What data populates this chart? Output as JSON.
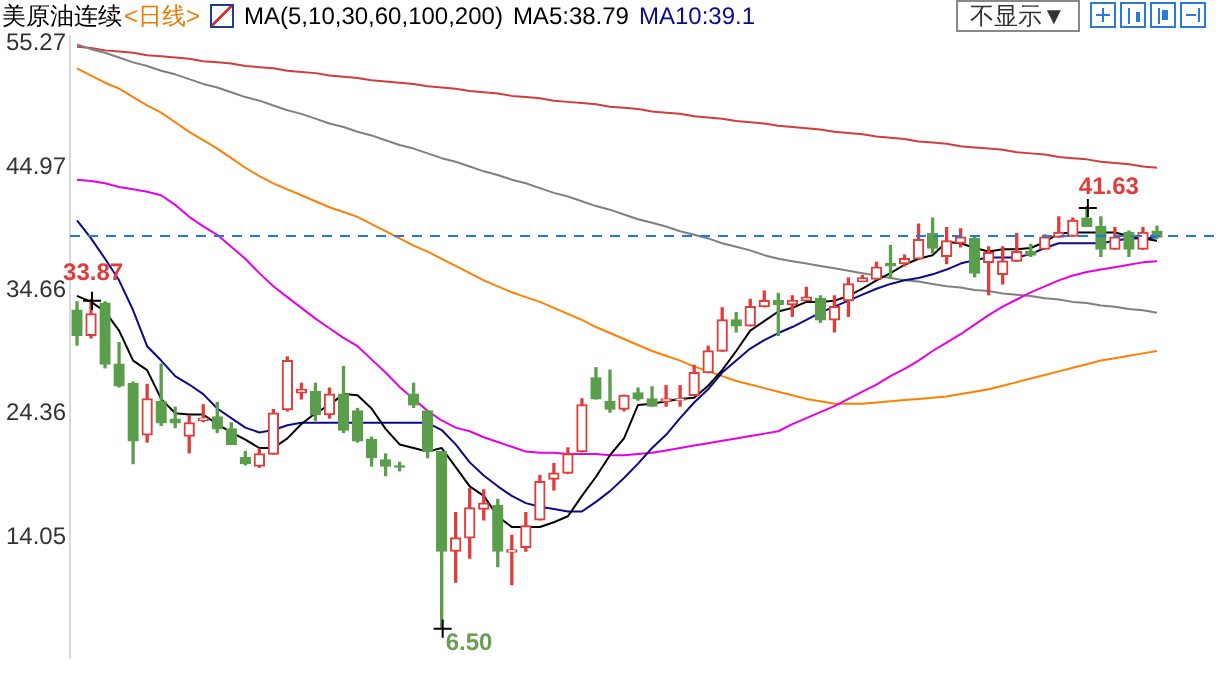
{
  "chart_data": {
    "type": "candlestick",
    "title": "美原油连续",
    "subtitle": "<日线>",
    "annotations": [
      "MA(5,10,30,60,100,200)",
      "MA5:38.79",
      "MA10:39.1",
      "不显示▼"
    ],
    "value_labels": [
      null,
      "33.87",
      null,
      null,
      null,
      null,
      null,
      null,
      null,
      null,
      null,
      null,
      null,
      null,
      null,
      null,
      null,
      null,
      null,
      null,
      null,
      null,
      null,
      null,
      null,
      null,
      "6.50",
      null,
      null,
      null,
      null,
      null,
      null,
      null,
      null,
      null,
      null,
      null,
      null,
      null,
      null,
      null,
      null,
      null,
      null,
      null,
      null,
      null,
      null,
      null,
      null,
      null,
      null,
      null,
      null,
      null,
      null,
      null,
      null,
      null,
      null,
      null,
      null,
      null,
      null,
      null,
      null,
      null,
      null,
      null,
      null,
      null,
      "41.63",
      null,
      null,
      null,
      null,
      null
    ],
    "categories": [
      null,
      null,
      null,
      null,
      null,
      null,
      null,
      null,
      null,
      null,
      null,
      null,
      null,
      null,
      null,
      null,
      null,
      null,
      null,
      null,
      null,
      null,
      null,
      null,
      null,
      null,
      null,
      null,
      null,
      null,
      null,
      null,
      null,
      null,
      null,
      null,
      null,
      null,
      null,
      null,
      null,
      null,
      null,
      null,
      null,
      null,
      null,
      null,
      null,
      null,
      null,
      null,
      null,
      null,
      null,
      null,
      null,
      null,
      null,
      null,
      null,
      null,
      null,
      null,
      null,
      null,
      null,
      null,
      null,
      null,
      null,
      null,
      null,
      null,
      null,
      null,
      null,
      null
    ],
    "ohlc": [
      [
        33.0,
        33.7,
        30.1,
        30.9
      ],
      [
        30.9,
        33.87,
        30.7,
        32.7
      ],
      [
        33.6,
        33.7,
        28.2,
        28.5
      ],
      [
        28.5,
        30.3,
        26.6,
        26.7
      ],
      [
        26.9,
        27.0,
        20.2,
        22.1
      ],
      [
        22.6,
        26.8,
        22.0,
        25.6
      ],
      [
        25.4,
        28.5,
        23.4,
        23.6
      ],
      [
        23.9,
        24.9,
        23.2,
        23.6
      ],
      [
        22.5,
        24.2,
        21.1,
        23.6
      ],
      [
        23.8,
        25.1,
        23.7,
        24.0
      ],
      [
        24.1,
        25.3,
        22.8,
        23.1
      ],
      [
        23.1,
        23.6,
        21.8,
        21.8
      ],
      [
        20.7,
        21.2,
        20.1,
        20.2
      ],
      [
        20.0,
        21.4,
        19.9,
        21.0
      ],
      [
        21.0,
        24.7,
        21.0,
        24.4
      ],
      [
        24.7,
        29.1,
        24.6,
        28.8
      ],
      [
        26.1,
        26.9,
        25.6,
        26.4
      ],
      [
        26.2,
        26.9,
        23.8,
        24.3
      ],
      [
        24.3,
        26.5,
        24.0,
        26.0
      ],
      [
        26.0,
        28.3,
        22.8,
        23.0
      ],
      [
        24.6,
        24.8,
        22.0,
        22.1
      ],
      [
        22.2,
        22.4,
        20.0,
        20.7
      ],
      [
        20.5,
        21.0,
        19.2,
        20.0
      ],
      [
        20.0,
        20.3,
        19.6,
        19.9
      ],
      [
        26.0,
        26.9,
        24.9,
        25.1
      ],
      [
        24.6,
        24.6,
        20.7,
        21.2
      ],
      [
        21.2,
        21.2,
        6.5,
        12.9
      ],
      [
        12.9,
        16.1,
        10.3,
        14.0
      ],
      [
        14.0,
        18.1,
        12.3,
        16.5
      ],
      [
        16.4,
        18.0,
        15.5,
        16.9
      ],
      [
        16.7,
        17.2,
        11.6,
        12.9
      ],
      [
        12.8,
        14.2,
        10.1,
        13.0
      ],
      [
        13.2,
        16.1,
        12.9,
        15.0
      ],
      [
        15.5,
        19.2,
        15.5,
        18.7
      ],
      [
        18.9,
        20.2,
        18.0,
        19.4
      ],
      [
        19.4,
        21.5,
        19.4,
        21.0
      ],
      [
        21.2,
        25.6,
        21.2,
        25.1
      ],
      [
        27.35,
        28.2,
        25.6,
        25.6
      ],
      [
        25.4,
        28.0,
        24.5,
        24.75
      ],
      [
        24.75,
        25.9,
        24.6,
        25.9
      ],
      [
        26.1,
        26.5,
        25.5,
        25.6
      ],
      [
        25.6,
        26.6,
        25.0,
        25.0
      ],
      [
        25.4,
        26.7,
        25.0,
        25.6
      ],
      [
        25.5,
        26.7,
        25.0,
        25.6
      ],
      [
        25.9,
        28.4,
        25.9,
        27.8
      ],
      [
        27.8,
        30.0,
        27.8,
        29.6
      ],
      [
        29.6,
        33.2,
        29.6,
        32.2
      ],
      [
        32.2,
        32.8,
        31.2,
        31.7
      ],
      [
        31.7,
        33.9,
        31.7,
        33.3
      ],
      [
        33.3,
        34.6,
        33.3,
        33.8
      ],
      [
        33.8,
        34.4,
        30.9,
        33.5
      ],
      [
        33.5,
        34.2,
        32.5,
        33.8
      ],
      [
        33.8,
        34.9,
        33.8,
        34.1
      ],
      [
        34.0,
        34.2,
        32.0,
        32.2
      ],
      [
        32.2,
        34.2,
        31.2,
        33.3
      ],
      [
        33.8,
        35.7,
        32.5,
        35.2
      ],
      [
        35.4,
        35.9,
        35.4,
        35.7
      ],
      [
        35.6,
        37.0,
        35.6,
        36.6
      ],
      [
        36.9,
        38.4,
        35.7,
        36.7
      ],
      [
        36.9,
        37.6,
        36.7,
        37.3
      ],
      [
        37.3,
        40.2,
        37.3,
        38.9
      ],
      [
        39.4,
        40.7,
        37.8,
        38.2
      ],
      [
        37.5,
        39.9,
        36.9,
        38.8
      ],
      [
        38.6,
        39.8,
        38.3,
        39.1
      ],
      [
        39.0,
        39.1,
        35.8,
        36.1
      ],
      [
        37.0,
        38.3,
        34.3,
        37.8
      ],
      [
        36.0,
        38.3,
        35.2,
        37.1
      ],
      [
        37.1,
        39.4,
        37.1,
        37.9
      ],
      [
        37.9,
        38.5,
        37.5,
        37.6
      ],
      [
        38.1,
        39.3,
        38.1,
        39.1
      ],
      [
        39.1,
        40.8,
        39.1,
        39.5
      ],
      [
        39.2,
        40.7,
        39.2,
        40.5
      ],
      [
        40.7,
        41.63,
        40.0,
        40.0
      ],
      [
        40.0,
        40.8,
        37.5,
        38.1
      ],
      [
        38.1,
        39.9,
        38.1,
        39.1
      ],
      [
        39.5,
        39.6,
        37.5,
        38.1
      ],
      [
        38.1,
        39.9,
        38.1,
        39.5
      ],
      [
        39.6,
        40.0,
        39.0,
        39.1
      ]
    ],
    "colors": [
      "#5a9e4b",
      "#e03c3c",
      "#5a9e4b",
      "#5a9e4b",
      "#5a9e4b",
      "#e03c3c",
      "#5a9e4b",
      "#5a9e4b",
      "#e03c3c",
      "#e03c3c",
      "#5a9e4b",
      "#5a9e4b",
      "#5a9e4b",
      "#e03c3c",
      "#e03c3c",
      "#e03c3c",
      "#e03c3c",
      "#5a9e4b",
      "#e03c3c",
      "#5a9e4b",
      "#5a9e4b",
      "#5a9e4b",
      "#5a9e4b",
      "#5a9e4b",
      "#5a9e4b",
      "#5a9e4b",
      "#5a9e4b",
      "#e03c3c",
      "#e03c3c",
      "#e03c3c",
      "#5a9e4b",
      "#e03c3c",
      "#e03c3c",
      "#e03c3c",
      "#e03c3c",
      "#e03c3c",
      "#e03c3c",
      "#5a9e4b",
      "#5a9e4b",
      "#e03c3c",
      "#5a9e4b",
      "#5a9e4b",
      "#e03c3c",
      "#e03c3c",
      "#e03c3c",
      "#e03c3c",
      "#e03c3c",
      "#5a9e4b",
      "#e03c3c",
      "#e03c3c",
      "#5a9e4b",
      "#e03c3c",
      "#e03c3c",
      "#5a9e4b",
      "#e03c3c",
      "#e03c3c",
      "#e03c3c",
      "#e03c3c",
      "#5a9e4b",
      "#e03c3c",
      "#e03c3c",
      "#5a9e4b",
      "#e03c3c",
      "#e03c3c",
      "#5a9e4b",
      "#e03c3c",
      "#e03c3c",
      "#e03c3c",
      "#5a9e4b",
      "#e03c3c",
      "#e03c3c",
      "#e03c3c",
      "#5a9e4b",
      "#5a9e4b",
      "#e03c3c",
      "#5a9e4b",
      "#e03c3c",
      "#5a9e4b"
    ],
    "series": [
      {
        "type": "line",
        "color": "#000000",
        "values": [
          34.2,
          33.7,
          32.9,
          31.3,
          28.8,
          28.0,
          25.6,
          24.4,
          24.3,
          24.3,
          23.5,
          22.8,
          22.2,
          21.5,
          21.5,
          22.3,
          23.5,
          24.4,
          25.1,
          26.0,
          25.9,
          24.8,
          23.1,
          21.8,
          21.5,
          21.2,
          21.5,
          19.9,
          18.3,
          17.5,
          15.8,
          14.9,
          14.9,
          14.9,
          15.3,
          15.8,
          17.5,
          19.1,
          20.9,
          22.3,
          25.1,
          25.2,
          25.4,
          25.6,
          25.7,
          26.7,
          28.0,
          29.6,
          31.3,
          32.1,
          32.9,
          33.2,
          33.7,
          33.7,
          33.8,
          34.2,
          34.8,
          35.5,
          36.1,
          36.8,
          37.3,
          37.6,
          38.7,
          38.6,
          38.2,
          37.9,
          38.1,
          38.1,
          38.2,
          38.7,
          39.4,
          39.5,
          39.5,
          39.5,
          39.5,
          39.2,
          39.0,
          38.8
        ]
      },
      {
        "type": "line",
        "color": "#0a0a8c",
        "values": [
          40.5,
          39.0,
          37.3,
          35.5,
          33.0,
          30.0,
          28.8,
          27.5,
          26.8,
          26.0,
          24.8,
          24.0,
          23.2,
          22.8,
          23.0,
          23.4,
          23.6,
          23.6,
          23.6,
          23.6,
          23.6,
          23.6,
          23.6,
          23.6,
          23.6,
          23.6,
          23.0,
          21.8,
          20.3,
          19.2,
          18.3,
          17.5,
          16.9,
          16.6,
          16.4,
          16.2,
          16.2,
          17.0,
          17.9,
          19.0,
          20.2,
          21.5,
          22.6,
          24.0,
          25.3,
          26.4,
          27.8,
          28.8,
          29.8,
          30.5,
          31.1,
          31.6,
          32.2,
          32.8,
          33.3,
          33.8,
          34.3,
          34.8,
          35.2,
          35.5,
          35.7,
          36.0,
          36.4,
          36.9,
          37.2,
          37.4,
          37.4,
          37.4,
          37.7,
          38.2,
          38.6,
          38.6,
          38.6,
          38.6,
          38.8,
          39.0,
          39.0,
          39.1
        ]
      },
      {
        "type": "line",
        "color": "#e600e6",
        "values": [
          43.9,
          43.8,
          43.6,
          43.3,
          43.1,
          42.9,
          42.6,
          41.8,
          40.8,
          40.0,
          39.3,
          38.3,
          37.3,
          36.1,
          35.0,
          34.1,
          33.2,
          32.3,
          31.5,
          30.7,
          30.0,
          28.9,
          27.8,
          26.6,
          25.6,
          24.6,
          23.8,
          23.2,
          22.9,
          22.4,
          22.0,
          21.6,
          21.2,
          21.1,
          21.1,
          21.0,
          21.0,
          21.0,
          20.9,
          20.9,
          21.0,
          21.1,
          21.3,
          21.5,
          21.7,
          21.9,
          22.1,
          22.3,
          22.5,
          22.7,
          22.9,
          23.5,
          24.0,
          24.5,
          25.0,
          25.6,
          26.2,
          26.8,
          27.5,
          28.1,
          28.8,
          29.6,
          30.3,
          31.0,
          31.8,
          32.6,
          33.3,
          33.9,
          34.5,
          35.0,
          35.5,
          35.9,
          36.2,
          36.4,
          36.6,
          36.8,
          37.0,
          37.1
        ]
      },
      {
        "type": "line",
        "color": "#ff8000",
        "values": [
          53.2,
          52.6,
          52.0,
          51.5,
          50.8,
          50.1,
          49.5,
          48.7,
          47.9,
          47.2,
          46.5,
          45.7,
          44.9,
          44.2,
          43.6,
          43.1,
          42.6,
          42.1,
          41.6,
          41.2,
          40.8,
          40.2,
          39.6,
          39.0,
          38.4,
          37.9,
          37.3,
          36.7,
          36.1,
          35.5,
          35.0,
          34.5,
          34.1,
          33.7,
          33.2,
          32.7,
          32.2,
          31.6,
          31.1,
          30.6,
          30.1,
          29.6,
          29.2,
          28.8,
          28.3,
          27.9,
          27.5,
          27.1,
          26.8,
          26.5,
          26.2,
          25.9,
          25.6,
          25.4,
          25.2,
          25.2,
          25.2,
          25.3,
          25.4,
          25.5,
          25.6,
          25.7,
          25.8,
          26.0,
          26.2,
          26.4,
          26.7,
          27.0,
          27.3,
          27.6,
          27.9,
          28.2,
          28.5,
          28.8,
          29.0,
          29.2,
          29.4,
          29.6
        ]
      },
      {
        "type": "line",
        "color": "#808080",
        "values": [
          55.2,
          54.8,
          54.5,
          54.1,
          53.7,
          53.4,
          53.0,
          52.7,
          52.3,
          51.9,
          51.6,
          51.2,
          50.8,
          50.5,
          50.1,
          49.7,
          49.4,
          49.0,
          48.6,
          48.3,
          47.9,
          47.6,
          47.2,
          46.8,
          46.5,
          46.1,
          45.7,
          45.4,
          45.0,
          44.6,
          44.3,
          43.9,
          43.6,
          43.2,
          42.8,
          42.5,
          42.1,
          41.7,
          41.4,
          41.0,
          40.6,
          40.3,
          40.0,
          39.6,
          39.3,
          39.0,
          38.6,
          38.3,
          38.0,
          37.6,
          37.3,
          37.1,
          36.9,
          36.7,
          36.5,
          36.3,
          36.1,
          35.9,
          35.7,
          35.5,
          35.4,
          35.2,
          35.0,
          34.9,
          34.7,
          34.6,
          34.4,
          34.3,
          34.2,
          34.0,
          33.9,
          33.7,
          33.6,
          33.4,
          33.3,
          33.1,
          33.0,
          32.8
        ]
      },
      {
        "type": "line",
        "color": "#d23c3c",
        "values": [
          55.0,
          54.9,
          54.7,
          54.6,
          54.5,
          54.3,
          54.2,
          54.1,
          54.0,
          53.8,
          53.7,
          53.6,
          53.4,
          53.3,
          53.2,
          53.0,
          52.9,
          52.8,
          52.6,
          52.5,
          52.4,
          52.2,
          52.1,
          52.0,
          51.9,
          51.7,
          51.6,
          51.5,
          51.3,
          51.2,
          51.1,
          50.9,
          50.8,
          50.7,
          50.5,
          50.4,
          50.3,
          50.2,
          50.0,
          49.9,
          49.8,
          49.6,
          49.5,
          49.4,
          49.2,
          49.1,
          49.0,
          48.8,
          48.7,
          48.6,
          48.4,
          48.3,
          48.2,
          48.1,
          47.9,
          47.8,
          47.7,
          47.5,
          47.4,
          47.3,
          47.1,
          47.0,
          46.9,
          46.7,
          46.6,
          46.5,
          46.4,
          46.2,
          46.1,
          46.0,
          45.8,
          45.7,
          45.6,
          45.4,
          45.3,
          45.2,
          45.0,
          44.9
        ]
      }
    ],
    "ylim": [
      4,
      55.9
    ],
    "yticks": [
      14.05,
      24.36,
      34.66,
      44.97,
      55.27
    ],
    "ref_lines": [
      {
        "axis": "y",
        "value": 39.2,
        "color": "#1e78e6",
        "line_style": "dashed"
      }
    ],
    "grid": false,
    "legend": false,
    "tick_labels": "y",
    "marker": "none"
  }
}
